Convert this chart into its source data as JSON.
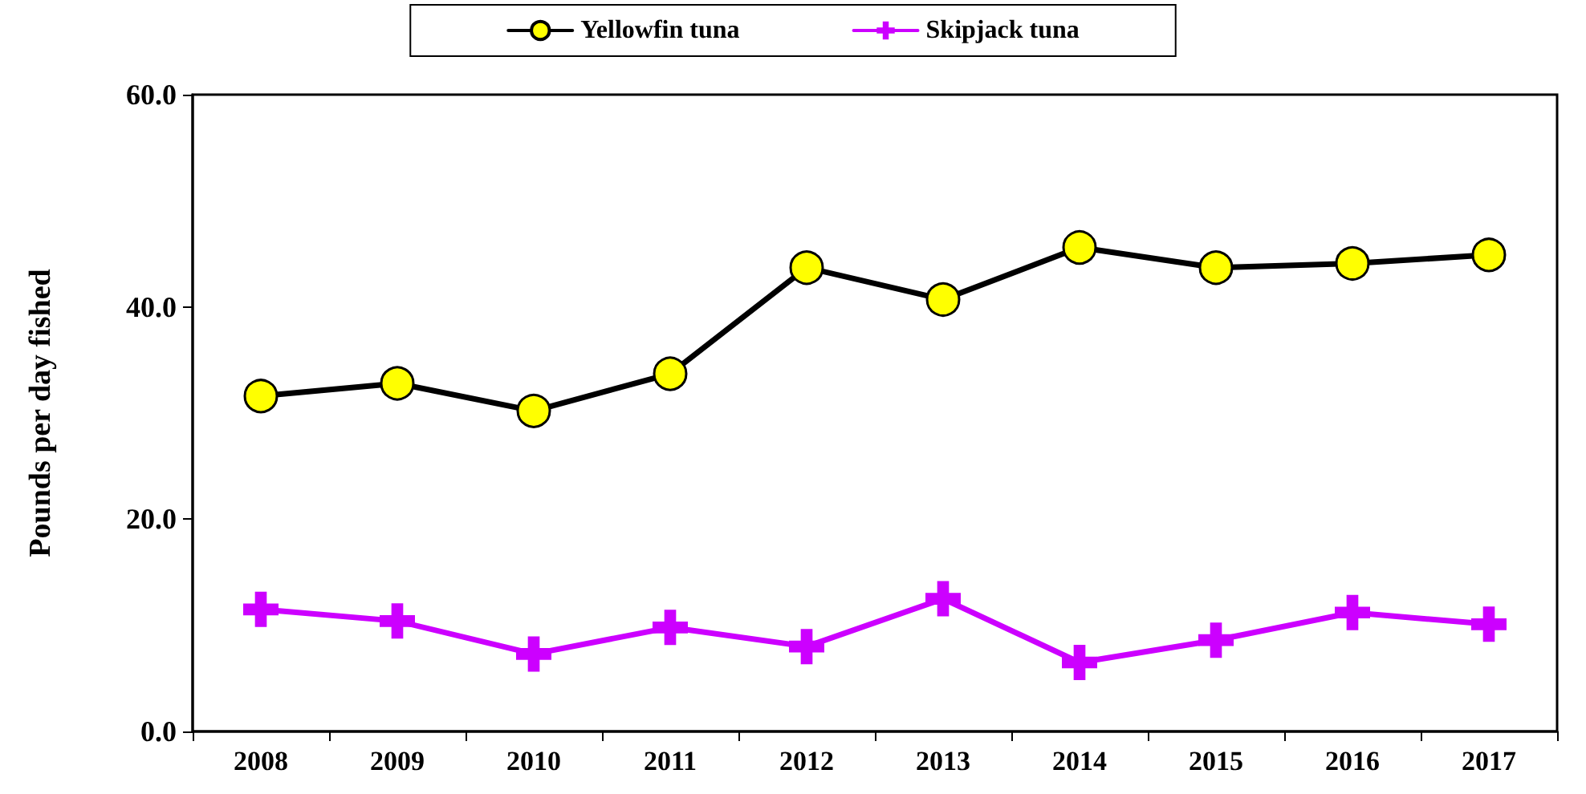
{
  "chart_data": {
    "type": "line",
    "ylabel": "Pounds per day fished",
    "categories": [
      "2008",
      "2009",
      "2010",
      "2011",
      "2012",
      "2013",
      "2014",
      "2015",
      "2016",
      "2017"
    ],
    "series": [
      {
        "name": "Yellowfin tuna",
        "color": "#000000",
        "colors": [
          "#ffff00",
          "#ffff00",
          "#ffff00",
          "#ffff00",
          "#ffff00",
          "#ffff00",
          "#ffff00",
          "#ffff00",
          "#ffff00",
          "#ffff00"
        ],
        "marker": "circle",
        "values": [
          31.6,
          32.8,
          30.2,
          33.7,
          43.7,
          40.7,
          45.6,
          43.7,
          44.1,
          44.9
        ]
      },
      {
        "name": "Skipjack tuna",
        "color": "#cc00ff",
        "marker": "cross",
        "values": [
          11.5,
          10.4,
          7.3,
          9.8,
          8.0,
          12.5,
          6.5,
          8.6,
          11.2,
          10.1
        ]
      }
    ],
    "ylim": [
      0,
      60
    ],
    "yticks": [
      {
        "value": 0,
        "label": "0.0"
      },
      {
        "value": 20,
        "label": "20.0"
      },
      {
        "value": 40,
        "label": "40.0"
      },
      {
        "value": 60,
        "label": "60.0"
      }
    ],
    "grid": false,
    "legend": "top",
    "line_style": "solid"
  }
}
